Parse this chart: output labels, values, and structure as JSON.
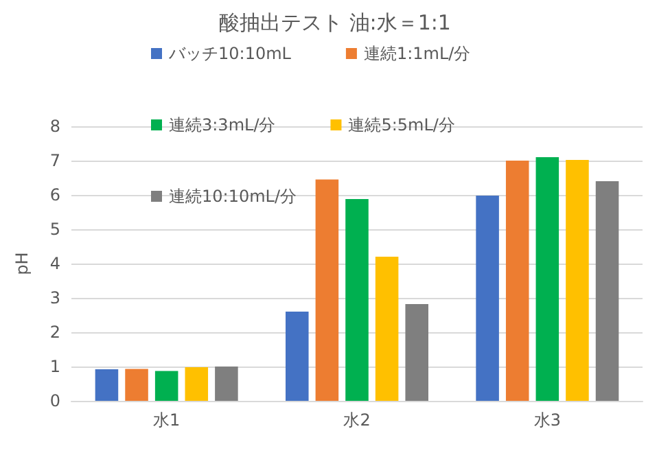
{
  "chart_data": {
    "type": "bar",
    "title": "酸抽出テスト 油:水＝1:1",
    "ylabel": "pH",
    "categories": [
      "水1",
      "水2",
      "水3"
    ],
    "series": [
      {
        "name": "バッチ10:10mL",
        "color": "#4472c4",
        "values": [
          0.92,
          2.6,
          5.98
        ]
      },
      {
        "name": "連続1:1mL/分",
        "color": "#ed7d31",
        "values": [
          0.93,
          6.45,
          7.0
        ]
      },
      {
        "name": "連続3:3mL/分",
        "color": "#00b050",
        "values": [
          0.87,
          5.88,
          7.1
        ]
      },
      {
        "name": "連続5:5mL/分",
        "color": "#ffc000",
        "values": [
          0.98,
          4.2,
          7.02
        ]
      },
      {
        "name": "連続10:10mL/分",
        "color": "#7f7f7f",
        "values": [
          1.0,
          2.82,
          6.4
        ]
      }
    ],
    "ylim": [
      0,
      8
    ],
    "yticks": [
      0,
      1,
      2,
      3,
      4,
      5,
      6,
      7,
      8
    ],
    "grid": "y",
    "legend": "top"
  }
}
